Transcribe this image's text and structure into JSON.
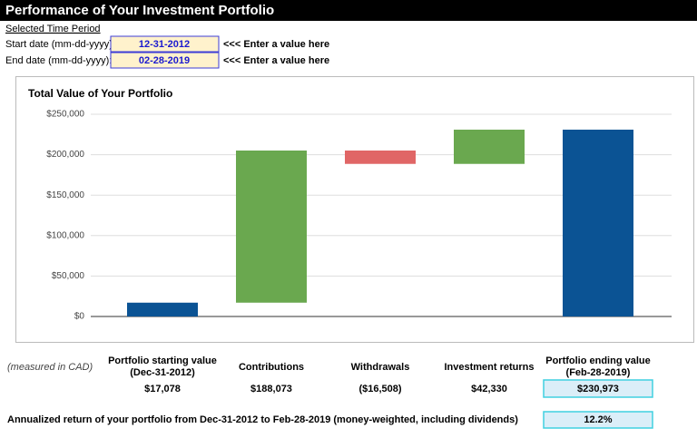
{
  "header": {
    "title": "Performance of Your Investment Portfolio"
  },
  "period": {
    "label": "Selected Time Period",
    "start_label": "Start date (mm-dd-yyyy):",
    "start_value": "12-31-2012",
    "start_hint": "<<< Enter a value here",
    "end_label": "End date (mm-dd-yyyy):",
    "end_value": "02-28-2019",
    "end_hint": "<<< Enter a value here"
  },
  "currency_note": "(measured in CAD)",
  "chart_data": {
    "type": "waterfall",
    "title": "Total Value of Your Portfolio",
    "categories": [
      "Portfolio starting value (Dec-31-2012)",
      "Contributions",
      "Withdrawals",
      "Investment returns",
      "Portfolio ending value (Feb-28-2019)"
    ],
    "values": [
      17078,
      188073,
      -16508,
      42330,
      230973
    ],
    "value_labels": [
      "$17,078",
      "$188,073",
      "($16,508)",
      "$42,330",
      "$230,973"
    ],
    "measure": [
      "absolute",
      "relative",
      "relative",
      "relative",
      "total"
    ],
    "colors": [
      "#0b5394",
      "#6aa84f",
      "#e06666",
      "#6aa84f",
      "#0b5394"
    ],
    "ylim": [
      0,
      250000
    ],
    "yticks": [
      {
        "value": 0,
        "label": "$0"
      },
      {
        "value": 50000,
        "label": "$50,000"
      },
      {
        "value": 100000,
        "label": "$100,000"
      },
      {
        "value": 150000,
        "label": "$150,000"
      },
      {
        "value": 200000,
        "label": "$200,000"
      },
      {
        "value": 250000,
        "label": "$250,000"
      }
    ],
    "grid": true
  },
  "annualized": {
    "label": "Annualized return of your portfolio from Dec-31-2012 to Feb-28-2019 (money-weighted, including dividends)",
    "value": "12.2%"
  }
}
